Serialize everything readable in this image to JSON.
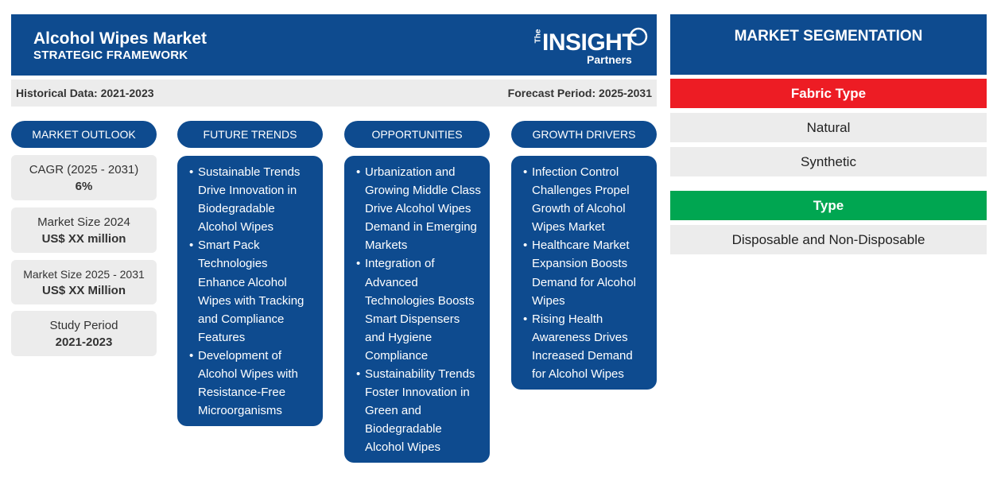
{
  "header": {
    "title": "Alcohol Wipes Market",
    "subtitle": "STRATEGIC FRAMEWORK",
    "logo": {
      "the": "The",
      "insight": "INSIGHT",
      "partners": "Partners"
    }
  },
  "periods": {
    "historical": "Historical Data: 2021-2023",
    "forecast": "Forecast Period: 2025-2031"
  },
  "columns": {
    "outlook": "MARKET OUTLOOK",
    "trends": "FUTURE TRENDS",
    "opportunities": "OPPORTUNITIES",
    "drivers": "GROWTH DRIVERS"
  },
  "outlook": [
    {
      "label": "CAGR (2025 - 2031)",
      "value": "6%"
    },
    {
      "label": "Market Size 2024",
      "value": "US$ XX million"
    },
    {
      "label": "Market Size 2025 - 2031",
      "value": "US$ XX Million"
    },
    {
      "label": "Study Period",
      "value": "2021-2023"
    }
  ],
  "trends": [
    "Sustainable Trends Drive Innovation in Biodegradable Alcohol Wipes",
    "Smart Pack Technologies Enhance Alcohol Wipes with Tracking and Compliance Features",
    "Development of Alcohol Wipes with Resistance-Free Microorganisms"
  ],
  "opportunities": [
    "Urbanization and Growing Middle Class Drive Alcohol Wipes Demand in Emerging Markets",
    "Integration of Advanced Technologies Boosts Smart Dispensers and Hygiene Compliance",
    "Sustainability Trends Foster Innovation in Green and Biodegradable Alcohol Wipes"
  ],
  "drivers": [
    "Infection Control Challenges Propel Growth of Alcohol Wipes Market",
    "Healthcare Market Expansion Boosts Demand for Alcohol Wipes",
    "Rising Health Awareness Drives Increased Demand for Alcohol Wipes"
  ],
  "segmentation": {
    "title": "MARKET SEGMENTATION",
    "groups": [
      {
        "name": "Fabric Type",
        "color": "#ed1c24",
        "items": [
          "Natural",
          "Synthetic"
        ]
      },
      {
        "name": "Type",
        "color": "#00a651",
        "items": [
          "Disposable and Non-Disposable"
        ]
      }
    ]
  },
  "colors": {
    "primary": "#0e4b8f",
    "panel": "#ececec"
  }
}
